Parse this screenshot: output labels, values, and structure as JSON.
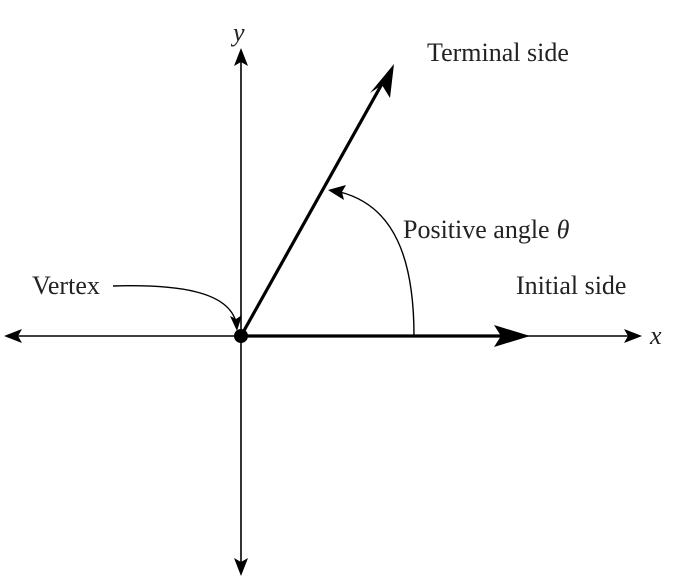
{
  "labels": {
    "y_axis": "y",
    "x_axis": "x",
    "terminal_side": "Terminal side",
    "positive_angle": "Positive angle",
    "theta": "θ",
    "vertex": "Vertex",
    "initial_side": "Initial side"
  },
  "colors": {
    "ink": "#000000",
    "text": "#222222",
    "background": "#ffffff"
  }
}
